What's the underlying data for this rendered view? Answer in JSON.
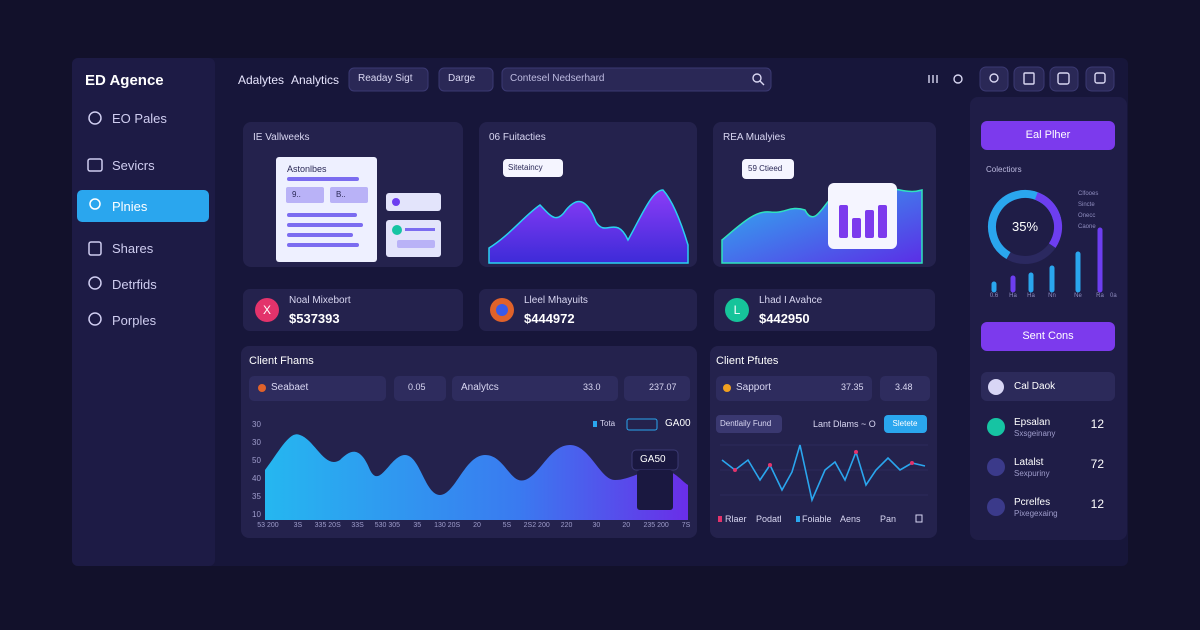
{
  "sidebar": {
    "logo": "ED Agence",
    "nav": [
      "EO Pales",
      "Sevicrs",
      "Plnies",
      "Shares",
      "Detrfids",
      "Porples"
    ]
  },
  "topbar": {
    "tabs": [
      "Adalytes",
      "Analytics"
    ],
    "dropdowns": [
      "Readay Sigt",
      "Darge"
    ],
    "search": "Contesel Nedserhard"
  },
  "cards": [
    {
      "title": "IE Vallweeks",
      "doc_title": "Astonlbes",
      "doc_chips": [
        "9..",
        "B.."
      ]
    },
    {
      "title": "06 Fuitacties",
      "tooltip": "Sitetaincy"
    },
    {
      "title": "REA Mualyies",
      "tooltip": "59 Ctieed"
    }
  ],
  "stats": [
    {
      "icon": "X",
      "label": "Noal Mixebort",
      "value": "$537393"
    },
    {
      "label": "Lleel Mhayuits",
      "value": "$444972"
    },
    {
      "icon": "L",
      "label": "Lhad I Avahce",
      "value": "$442950"
    }
  ],
  "client_chart": {
    "title": "Client Fhams",
    "filters": [
      "Seabaet",
      "0.05",
      "Analytcs",
      "33.0",
      "237.07"
    ],
    "legend": [
      "Tota",
      "GA00"
    ],
    "tooltip": "GA50",
    "y_labels": [
      "30",
      "30",
      "50",
      "40",
      "35",
      "10"
    ],
    "x_labels": [
      "53 200",
      "3S",
      "335 20S",
      "33S",
      "530 305",
      "35",
      "130 20S",
      "20",
      "5S",
      "2S2 200",
      "220",
      "30",
      "20",
      "235 200",
      "7S"
    ]
  },
  "client_chart_2": {
    "title": "Client Pfutes",
    "filters": [
      "Sapport",
      "37.35",
      "3.48"
    ],
    "tabs": [
      "Dentlaily Fund",
      "Lant Dlams ~ O"
    ],
    "button": "Sletete",
    "legend": [
      "Rlaer",
      "Podatl",
      "Foiable",
      "Aens",
      "Pan"
    ]
  },
  "right_panel": {
    "primary_button": "Eal Plher",
    "section": "Colectiors",
    "donut_label": "35%",
    "donut_legend": [
      "Clfooes",
      "Sincte",
      "Onecc",
      "Caone"
    ],
    "bar_labels": [
      "0.6",
      "Ha",
      "Ha",
      "Nn",
      "Ne",
      "Ra",
      "0a"
    ],
    "secondary_button": "Sent Cons",
    "call_item": "Cal Daok",
    "list": [
      {
        "title": "Epsalan",
        "subtitle": "Sxsgeinany",
        "value": "12"
      },
      {
        "title": "Latalst",
        "subtitle": "Sexpuriny",
        "value": "72"
      },
      {
        "title": "Pcrelfes",
        "subtitle": "Pixegexaing",
        "value": "12"
      }
    ]
  }
}
